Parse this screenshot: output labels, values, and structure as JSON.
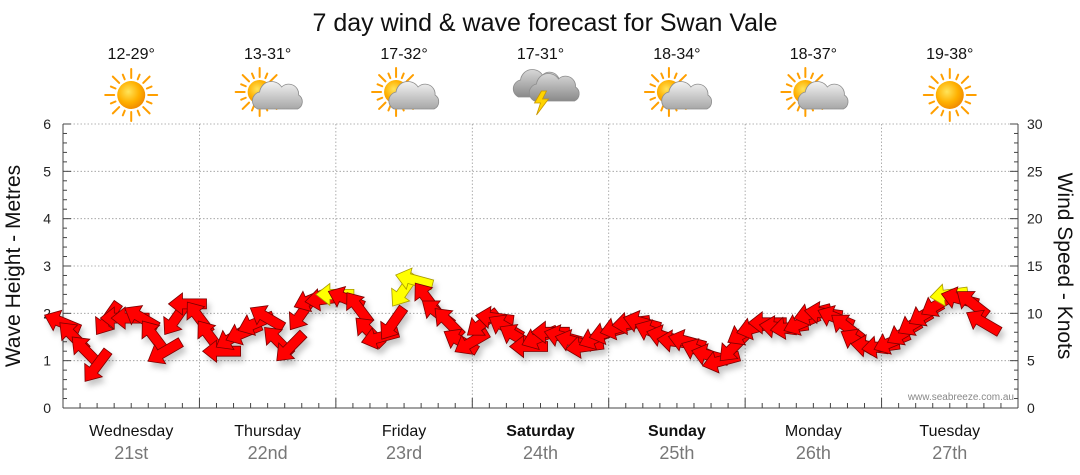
{
  "chart_data": {
    "type": "line",
    "title": "7 day wind & wave forecast for Swan Vale",
    "ylabel_left": "Wave Height - Metres",
    "ylabel_right": "Wind Speed - Knots",
    "ylim_left": [
      0,
      6
    ],
    "ylim_right": [
      0,
      30
    ],
    "yticks_left": [
      "0",
      "1",
      "2",
      "3",
      "4",
      "5",
      "6"
    ],
    "yticks_right": [
      "0",
      "5",
      "10",
      "15",
      "20",
      "25",
      "30"
    ],
    "grid": true,
    "credit": "www.seabreeze.com.au",
    "days": [
      {
        "day": "Wednesday",
        "date": "21st",
        "temp": "12-29°",
        "weather": "sunny-icon",
        "bold": false
      },
      {
        "day": "Thursday",
        "date": "22nd",
        "temp": "13-31°",
        "weather": "partly-cloudy-icon",
        "bold": false
      },
      {
        "day": "Friday",
        "date": "23rd",
        "temp": "17-32°",
        "weather": "partly-cloudy-icon",
        "bold": false
      },
      {
        "day": "Saturday",
        "date": "24th",
        "temp": "17-31°",
        "weather": "storm-icon",
        "bold": true
      },
      {
        "day": "Sunday",
        "date": "25th",
        "temp": "18-34°",
        "weather": "partly-cloudy-icon",
        "bold": true
      },
      {
        "day": "Monday",
        "date": "26th",
        "temp": "18-37°",
        "weather": "partly-cloudy-icon",
        "bold": false
      },
      {
        "day": "Tuesday",
        "date": "27th",
        "temp": "19-38°",
        "weather": "sunny-icon",
        "bold": false
      }
    ],
    "series": [
      {
        "name": "Wind Speed (knots)",
        "unit": "knots",
        "color_strong": "#ff0000",
        "color_light": "#ffff00",
        "light_threshold_knots": 12,
        "x_days": [
          0,
          0.08,
          0.17,
          0.25,
          0.33,
          0.42,
          0.5,
          0.58,
          0.67,
          0.75,
          0.83,
          0.92,
          1.0,
          1.08,
          1.17,
          1.25,
          1.33,
          1.42,
          1.5,
          1.58,
          1.67,
          1.75,
          1.83,
          1.92,
          2.0,
          2.08,
          2.17,
          2.25,
          2.33,
          2.42,
          2.5,
          2.58,
          2.67,
          2.75,
          2.83,
          2.92,
          3.0,
          3.08,
          3.17,
          3.25,
          3.33,
          3.42,
          3.5,
          3.58,
          3.67,
          3.75,
          3.83,
          3.92,
          4.0,
          4.08,
          4.17,
          4.25,
          4.33,
          4.42,
          4.5,
          4.58,
          4.67,
          4.75,
          4.83,
          4.92,
          5.0,
          5.08,
          5.17,
          5.25,
          5.33,
          5.42,
          5.5,
          5.58,
          5.67,
          5.75,
          5.83,
          5.92,
          6.0,
          6.08,
          6.17,
          6.25,
          6.33,
          6.42,
          6.5,
          6.58,
          6.67,
          6.75
        ],
        "values": [
          9,
          7.5,
          6,
          4.5,
          9.5,
          9.5,
          9.5,
          9.5,
          7.5,
          6,
          9.5,
          11,
          9.5,
          7.5,
          6,
          7.5,
          8,
          9,
          9.5,
          7,
          6.5,
          10,
          11.5,
          11.5,
          12,
          11.5,
          10.5,
          8,
          7.5,
          9,
          12.5,
          13.5,
          11.5,
          10,
          9,
          7,
          7,
          9,
          9.5,
          8.5,
          7.5,
          6.5,
          7.5,
          8,
          7.5,
          7,
          6.5,
          7.5,
          8,
          8.5,
          9,
          9,
          8,
          7.5,
          7,
          7,
          6,
          5.5,
          5,
          6.5,
          8,
          8.5,
          9,
          8.5,
          8.5,
          9,
          10,
          10,
          9.5,
          8.5,
          7,
          6.5,
          6.5,
          7,
          8,
          9,
          10,
          11,
          12,
          11.5,
          11,
          9
        ]
      }
    ]
  }
}
